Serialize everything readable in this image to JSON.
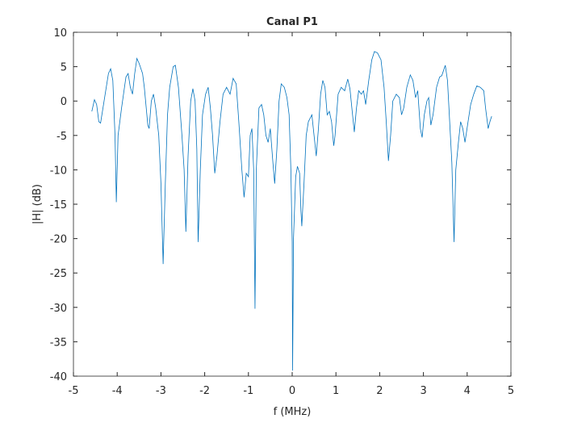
{
  "chart_data": {
    "type": "line",
    "title": "Canal P1",
    "xlabel": "f (MHz)",
    "ylabel": "|H| (dB)",
    "xlim": [
      -5,
      5
    ],
    "xticks": [
      -5,
      -4,
      -3,
      -2,
      -1,
      0,
      1,
      2,
      3,
      4,
      5
    ],
    "ylim": [
      -40,
      10
    ],
    "yticks": [
      -40,
      -35,
      -30,
      -25,
      -20,
      -15,
      -10,
      -5,
      0,
      5,
      10
    ],
    "grid": false,
    "series": [
      {
        "color": "#0072BD",
        "x": [
          -4.58,
          -4.52,
          -4.47,
          -4.42,
          -4.38,
          -4.3,
          -4.2,
          -4.15,
          -4.1,
          -4.05,
          -4.02,
          -3.98,
          -3.9,
          -3.8,
          -3.75,
          -3.7,
          -3.65,
          -3.6,
          -3.55,
          -3.5,
          -3.42,
          -3.38,
          -3.3,
          -3.27,
          -3.22,
          -3.17,
          -3.12,
          -3.05,
          -3.0,
          -2.95,
          -2.9,
          -2.85,
          -2.8,
          -2.72,
          -2.67,
          -2.6,
          -2.52,
          -2.47,
          -2.43,
          -2.38,
          -2.32,
          -2.27,
          -2.22,
          -2.18,
          -2.15,
          -2.1,
          -2.05,
          -1.98,
          -1.92,
          -1.87,
          -1.82,
          -1.77,
          -1.72,
          -1.65,
          -1.58,
          -1.5,
          -1.42,
          -1.35,
          -1.28,
          -1.22,
          -1.15,
          -1.1,
          -1.05,
          -1.0,
          -0.96,
          -0.92,
          -0.88,
          -0.85,
          -0.82,
          -0.76,
          -0.7,
          -0.65,
          -0.6,
          -0.55,
          -0.5,
          -0.44,
          -0.4,
          -0.35,
          -0.3,
          -0.25,
          -0.18,
          -0.12,
          -0.07,
          -0.03,
          0.0,
          0.01,
          0.03,
          0.08,
          0.12,
          0.17,
          0.2,
          0.22,
          0.27,
          0.32,
          0.37,
          0.45,
          0.5,
          0.55,
          0.6,
          0.65,
          0.7,
          0.75,
          0.8,
          0.85,
          0.9,
          0.95,
          0.98,
          1.05,
          1.12,
          1.2,
          1.27,
          1.32,
          1.38,
          1.42,
          1.47,
          1.52,
          1.58,
          1.63,
          1.68,
          1.75,
          1.82,
          1.88,
          1.95,
          2.03,
          2.1,
          2.15,
          2.2,
          2.25,
          2.3,
          2.38,
          2.45,
          2.5,
          2.55,
          2.62,
          2.7,
          2.76,
          2.82,
          2.87,
          2.93,
          2.97,
          3.02,
          3.08,
          3.12,
          3.17,
          3.22,
          3.3,
          3.37,
          3.42,
          3.5,
          3.55,
          3.6,
          3.65,
          3.7,
          3.74,
          3.8,
          3.85,
          3.9,
          3.95,
          4.02,
          4.08,
          4.15,
          4.22,
          4.3,
          4.38,
          4.42,
          4.48,
          4.52,
          4.56
        ],
        "values": [
          -1.5,
          0.2,
          -0.5,
          -3,
          -3.2,
          0,
          4,
          4.7,
          3,
          -5,
          -14.7,
          -5,
          -1,
          3.5,
          4,
          2,
          1,
          4,
          6.2,
          5.5,
          4,
          2,
          -3.5,
          -4,
          0,
          1,
          -1,
          -5,
          -12,
          -23.7,
          -12,
          -2,
          2,
          5,
          5.2,
          2,
          -5,
          -10,
          -19,
          -8,
          0,
          1.8,
          0,
          -7,
          -20.5,
          -10,
          -2,
          1,
          2,
          -1,
          -5,
          -10.5,
          -8,
          -3,
          1,
          2,
          1,
          3.3,
          2.5,
          -3,
          -10,
          -14,
          -10.5,
          -11,
          -5,
          -4,
          -10,
          -30.2,
          -10,
          -1,
          -0.5,
          -2,
          -5,
          -6,
          -4,
          -9,
          -12,
          -7,
          0,
          2.5,
          2,
          0.5,
          -2,
          -10,
          -20.5,
          -39.2,
          -20,
          -11,
          -9.5,
          -10.5,
          -16,
          -18.2,
          -12,
          -5,
          -3,
          -2,
          -5,
          -8,
          -4,
          1,
          3,
          2,
          -2,
          -1.5,
          -3,
          -6.5,
          -5,
          1,
          2,
          1.5,
          3.2,
          1.8,
          -2,
          -4.5,
          -1,
          1.5,
          1,
          1.5,
          -0.5,
          3,
          6,
          7.2,
          7,
          6,
          2,
          -3,
          -8.7,
          -5,
          0,
          1,
          0.5,
          -2,
          -1,
          2,
          3.8,
          3,
          0.5,
          1.5,
          -4,
          -5.3,
          -2,
          0,
          0.5,
          -3.5,
          -2,
          2,
          3.5,
          3.7,
          5.2,
          3,
          -3,
          -9,
          -20.5,
          -10,
          -6,
          -3,
          -4,
          -6,
          -3,
          -0.5,
          1,
          2.2,
          2,
          1.5,
          -1,
          -4,
          -3,
          -2.2
        ]
      }
    ]
  }
}
